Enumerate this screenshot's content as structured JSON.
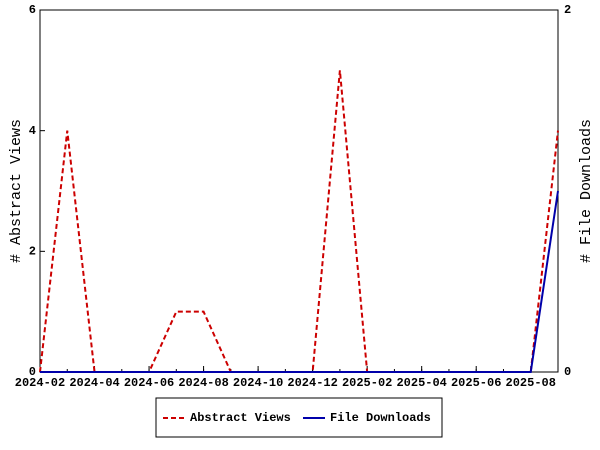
{
  "chart_data": {
    "type": "line",
    "x": [
      "2024-02",
      "2024-03",
      "2024-04",
      "2024-05",
      "2024-06",
      "2024-07",
      "2024-08",
      "2024-09",
      "2024-10",
      "2024-11",
      "2024-12",
      "2025-01",
      "2025-02",
      "2025-03",
      "2025-04",
      "2025-05",
      "2025-06",
      "2025-07",
      "2025-08",
      "2025-09"
    ],
    "xlim": [
      "2024-02",
      "2025-09"
    ],
    "xticks": [
      "2024-02",
      "2024-04",
      "2024-06",
      "2024-08",
      "2024-10",
      "2024-12",
      "2025-02",
      "2025-04",
      "2025-06",
      "2025-08"
    ],
    "ylabel": "# Abstract Views",
    "y2label": "# File Downloads",
    "ylim": [
      0,
      6
    ],
    "yticks": [
      0,
      2,
      4,
      6
    ],
    "y2lim": [
      0,
      2
    ],
    "y2ticks": [
      0,
      2
    ],
    "legend": "bottom",
    "series": [
      {
        "name": "Abstract Views",
        "color": "#cc0000",
        "dash": true,
        "values": [
          0,
          4,
          0,
          0,
          0,
          1,
          1,
          0,
          0,
          0,
          0,
          5,
          0,
          0,
          0,
          0,
          0,
          0,
          0,
          4
        ]
      },
      {
        "name": "File Downloads",
        "color": "#0000aa",
        "axis": "y2",
        "values": [
          0,
          0,
          0,
          0,
          0,
          0,
          0,
          0,
          0,
          0,
          0,
          0,
          0,
          0,
          0,
          0,
          0,
          0,
          0,
          1
        ]
      }
    ]
  }
}
